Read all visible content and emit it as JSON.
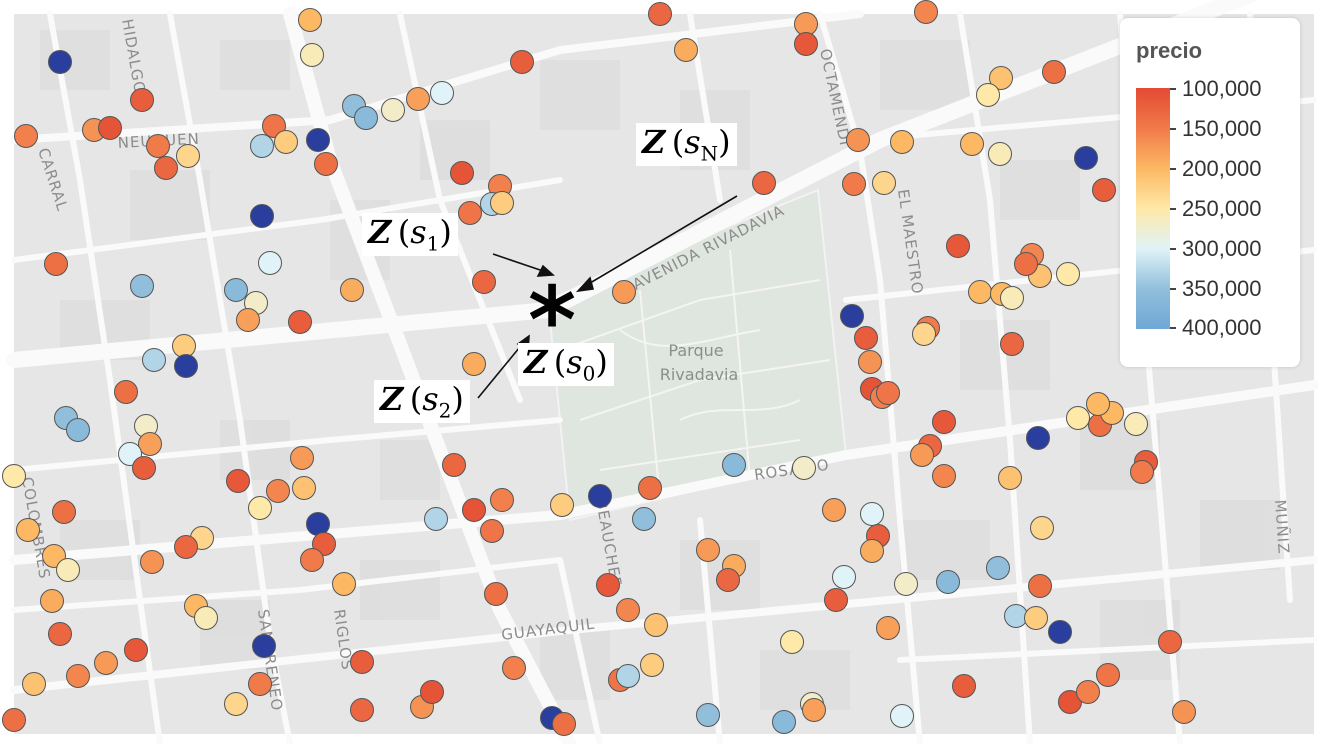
{
  "legend": {
    "title": "precio",
    "labels": [
      "100,000",
      "150,000",
      "200,000",
      "250,000",
      "300,000",
      "350,000",
      "400,000"
    ],
    "colors": [
      "#e34a33",
      "#f07a4a",
      "#fdb863",
      "#fee9a8",
      "#e0f3f8",
      "#91bfdb",
      "#6fa8d6"
    ]
  },
  "streets": [
    "HIDALGO",
    "NEUQUEN",
    "CARRAL",
    "OCTAMENDI",
    "EL MAESTRO",
    "AVENIDA RIVADAVIA",
    "ROSARIO",
    "BEAUCHEF",
    "GUAYAQUIL",
    "RIGLOS",
    "SAN IRENEO",
    "COLOMBRES",
    "MUÑIZ"
  ],
  "park": {
    "line1": "Parque",
    "line2": "Rivadavia"
  },
  "annotations": {
    "zsN": {
      "z": "Z",
      "s": "s",
      "sub": "N"
    },
    "zs1": {
      "z": "Z",
      "s": "s",
      "sub": "1"
    },
    "zs2": {
      "z": "Z",
      "s": "s",
      "sub": "2"
    },
    "zs0": {
      "z": "Z",
      "s": "s",
      "sub": "0"
    },
    "target_marker": "*"
  },
  "points": [
    {
      "price": 200000
    },
    {
      "price": 260000
    },
    {
      "price": 400000
    },
    {
      "price": 120000
    },
    {
      "price": 150000
    },
    {
      "price": 230000
    },
    {
      "price": 130000
    },
    {
      "price": 170000
    },
    {
      "price": 110000
    },
    {
      "price": 155000
    },
    {
      "price": 145000
    },
    {
      "price": 330000
    },
    {
      "price": 220000
    },
    {
      "price": 400000
    },
    {
      "price": 140000
    },
    {
      "price": 350000
    },
    {
      "price": 360000
    },
    {
      "price": 270000
    },
    {
      "price": 180000
    },
    {
      "price": 300000
    },
    {
      "price": 120000
    },
    {
      "price": 190000
    },
    {
      "price": 130000
    },
    {
      "price": 175000
    },
    {
      "price": 115000
    },
    {
      "price": 160000
    },
    {
      "price": 210000
    },
    {
      "price": 250000
    },
    {
      "price": 140000
    },
    {
      "price": 200000
    }
  ]
}
